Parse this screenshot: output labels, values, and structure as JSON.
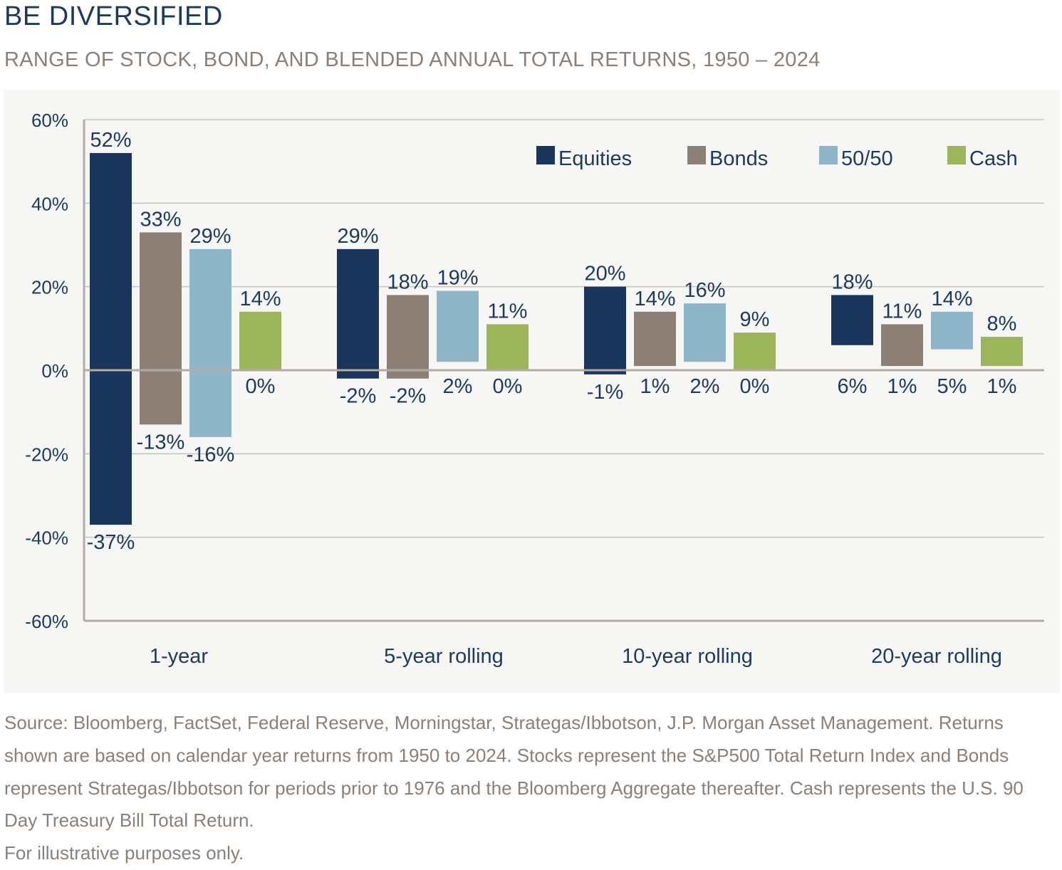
{
  "header": {
    "title": "BE DIVERSIFIED",
    "subtitle": "RANGE OF STOCK, BOND, AND BLENDED ANNUAL TOTAL RETURNS, 1950 – 2024"
  },
  "footer": {
    "source": "Source: Bloomberg, FactSet, Federal Reserve, Morningstar, Strategas/Ibbotson, J.P. Morgan Asset Management. Returns shown are based on calendar year returns from 1950 to 2024. Stocks represent the S&P500 Total Return Index and Bonds represent Strategas/Ibbotson for periods prior to 1976 and the Bloomberg Aggregate thereafter. Cash represents the U.S. 90 Day Treasury Bill Total Return.",
    "note": "For illustrative purposes only."
  },
  "chart_data": {
    "type": "bar",
    "subtype": "floating-range",
    "categories": [
      "1-year",
      "5-year rolling",
      "10-year rolling",
      "20-year rolling"
    ],
    "ylim": [
      -60,
      60
    ],
    "yticks": [
      60,
      40,
      20,
      0,
      -20,
      -40,
      -60
    ],
    "ytick_labels": [
      "60%",
      "40%",
      "20%",
      "0%",
      "-20%",
      "-40%",
      "-60%"
    ],
    "grid": true,
    "legend_position": "top-right",
    "series": [
      {
        "name": "Equities",
        "color": "#1b365d",
        "max": [
          52,
          29,
          20,
          18
        ],
        "min": [
          -37,
          -2,
          -1,
          6
        ],
        "max_labels": [
          "52%",
          "29%",
          "20%",
          "18%"
        ],
        "min_labels": [
          "-37%",
          "-2%",
          "-1%",
          "6%"
        ]
      },
      {
        "name": "Bonds",
        "color": "#8b7f76",
        "max": [
          33,
          18,
          14,
          11
        ],
        "min": [
          -13,
          -2,
          1,
          1
        ],
        "max_labels": [
          "33%",
          "18%",
          "14%",
          "11%"
        ],
        "min_labels": [
          "-13%",
          "-2%",
          "1%",
          "1%"
        ]
      },
      {
        "name": "50/50",
        "color": "#8fb5c9",
        "max": [
          29,
          19,
          16,
          14
        ],
        "min": [
          -16,
          2,
          2,
          5
        ],
        "max_labels": [
          "29%",
          "19%",
          "16%",
          "14%"
        ],
        "min_labels": [
          "-16%",
          "2%",
          "2%",
          "5%"
        ]
      },
      {
        "name": "Cash",
        "color": "#9cb45a",
        "max": [
          14,
          11,
          9,
          8
        ],
        "min": [
          0,
          0,
          0,
          1
        ],
        "max_labels": [
          "14%",
          "11%",
          "9%",
          "8%"
        ],
        "min_labels": [
          "0%",
          "0%",
          "0%",
          "1%"
        ]
      }
    ]
  }
}
